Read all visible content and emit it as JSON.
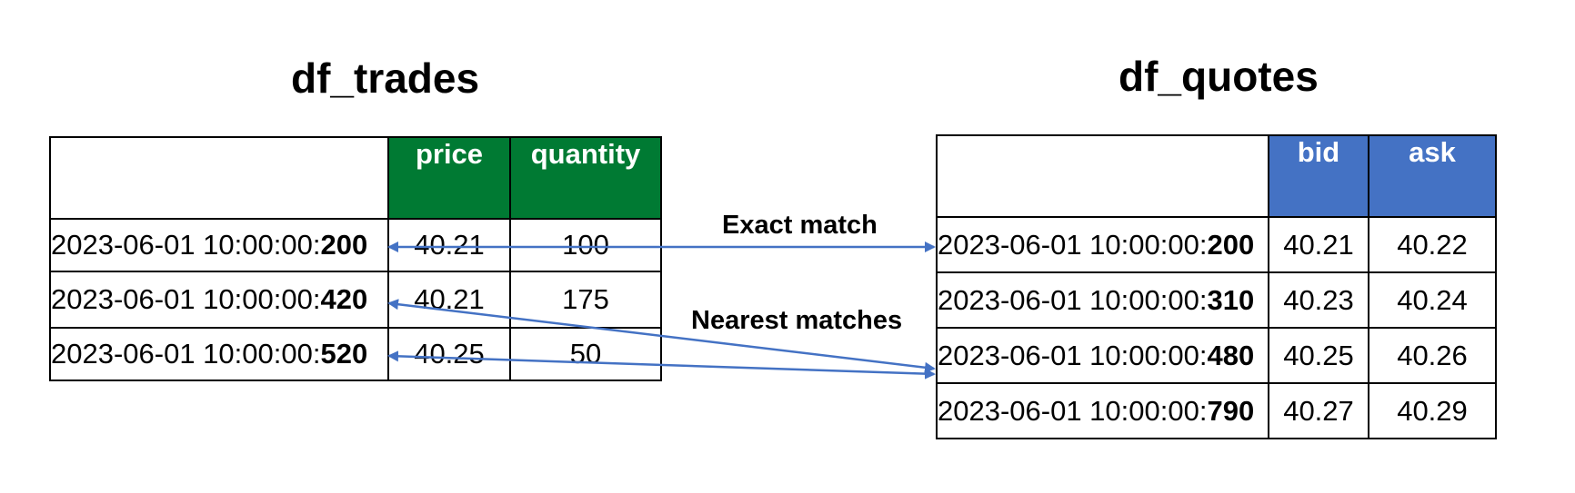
{
  "trades": {
    "title": "df_trades",
    "headers": [
      "",
      "price",
      "quantity"
    ],
    "rows": [
      {
        "ts_prefix": "2023-06-01 10:00:00:",
        "ts_ms": "200",
        "price": "40.21",
        "quantity": "100"
      },
      {
        "ts_prefix": "2023-06-01 10:00:00:",
        "ts_ms": "420",
        "price": "40.21",
        "quantity": "175"
      },
      {
        "ts_prefix": "2023-06-01 10:00:00:",
        "ts_ms": "520",
        "price": "40.25",
        "quantity": "50"
      }
    ]
  },
  "quotes": {
    "title": "df_quotes",
    "headers": [
      "",
      "bid",
      "ask"
    ],
    "rows": [
      {
        "ts_prefix": "2023-06-01 10:00:00:",
        "ts_ms": "200",
        "bid": "40.21",
        "ask": "40.22"
      },
      {
        "ts_prefix": "2023-06-01 10:00:00:",
        "ts_ms": "310",
        "bid": "40.23",
        "ask": "40.24"
      },
      {
        "ts_prefix": "2023-06-01 10:00:00:",
        "ts_ms": "480",
        "bid": "40.25",
        "ask": "40.26"
      },
      {
        "ts_prefix": "2023-06-01 10:00:00:",
        "ts_ms": "790",
        "bid": "40.27",
        "ask": "40.29"
      }
    ]
  },
  "labels": {
    "exact": "Exact match",
    "nearest": "Nearest matches"
  },
  "colors": {
    "trades_header": "#007a33",
    "quotes_header": "#4472c4",
    "arrow": "#4472c4"
  }
}
